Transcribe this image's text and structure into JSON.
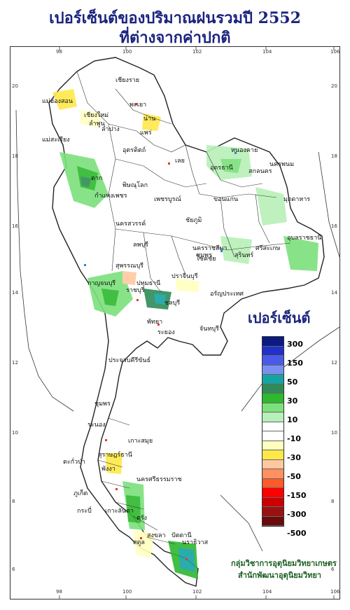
{
  "title": {
    "line1": "เปอร์เซ็นต์ของปริมาณฝนรวมปี  2552",
    "line2": "ที่ต่างจากค่าปกติ"
  },
  "axes": {
    "top_ticks": [
      "98",
      "100",
      "102",
      "104",
      "106"
    ],
    "bottom_ticks": [
      "98",
      "100",
      "102",
      "104",
      "106"
    ],
    "left_ticks": [
      "20",
      "18",
      "16",
      "14",
      "12",
      "10",
      "8",
      "6"
    ],
    "right_ticks": [
      "20",
      "18",
      "16",
      "14",
      "12",
      "10",
      "8",
      "6"
    ]
  },
  "places": [
    {
      "name": "เชียงราย"
    },
    {
      "name": "แม่ฮ่องสอน"
    },
    {
      "name": "เชียงใหม่"
    },
    {
      "name": "ลำพูน"
    },
    {
      "name": "พะเยา"
    },
    {
      "name": "น่าน"
    },
    {
      "name": "ลำปาง"
    },
    {
      "name": "แพร่"
    },
    {
      "name": "แม่สะเรียง"
    },
    {
      "name": "อุตรดิตถ์"
    },
    {
      "name": "ตาก"
    },
    {
      "name": "พิษณุโลก"
    },
    {
      "name": "กำแพงเพชร"
    },
    {
      "name": "เพชรบูรณ์"
    },
    {
      "name": "เลย"
    },
    {
      "name": "อุดรธานี"
    },
    {
      "name": "หนองคาย"
    },
    {
      "name": "สกลนคร"
    },
    {
      "name": "นครพนม"
    },
    {
      "name": "มุกดาหาร"
    },
    {
      "name": "ขอนแก่น"
    },
    {
      "name": "ชัยภูมิ"
    },
    {
      "name": "นครสวรรค์"
    },
    {
      "name": "ลพบุรี"
    },
    {
      "name": "นครราชสีมา"
    },
    {
      "name": "โชคชัย"
    },
    {
      "name": "ชุมพร"
    },
    {
      "name": "สุรินทร์"
    },
    {
      "name": "ศรีสะเกษ"
    },
    {
      "name": "อุบลราชธานี"
    },
    {
      "name": "สุพรรณบุรี"
    },
    {
      "name": "กาญจนบุรี"
    },
    {
      "name": "ปทุมธานี"
    },
    {
      "name": "ราชบุรี"
    },
    {
      "name": "ปราจีนบุรี"
    },
    {
      "name": "อรัญประเทศ"
    },
    {
      "name": "ชลบุรี"
    },
    {
      "name": "พัทยา"
    },
    {
      "name": "ระยอง"
    },
    {
      "name": "จันทบุรี"
    },
    {
      "name": "ประจวบคีรีขันธ์"
    },
    {
      "name": "ชุมพร"
    },
    {
      "name": "ระนอง"
    },
    {
      "name": "เกาะสมุย"
    },
    {
      "name": "สุราษฎร์ธานี"
    },
    {
      "name": "ตะกั่วป่า"
    },
    {
      "name": "พังงา"
    },
    {
      "name": "นครศรีธรรมราช"
    },
    {
      "name": "ภูเก็ต"
    },
    {
      "name": "กระบี่"
    },
    {
      "name": "เกาะลันตา"
    },
    {
      "name": "ตรัง"
    },
    {
      "name": "สงขลา"
    },
    {
      "name": "ปัตตานี"
    },
    {
      "name": "สตูล"
    },
    {
      "name": "นราธิวาส"
    }
  ],
  "legend": {
    "title": "เปอร์เซ็นต์",
    "bins": [
      {
        "color": "#0a1a80"
      },
      {
        "color": "#2030c8"
      },
      {
        "color": "#4a5ae8"
      },
      {
        "color": "#7a90f0"
      },
      {
        "color": "#16a3a3"
      },
      {
        "color": "#2e8b57"
      },
      {
        "color": "#2eb82e"
      },
      {
        "color": "#7ce07c"
      },
      {
        "color": "#b8f0b8"
      },
      {
        "color": "#ffffff"
      },
      {
        "color": "#ffffff"
      },
      {
        "color": "#ffffc0"
      },
      {
        "color": "#ffe84a"
      },
      {
        "color": "#ffc8a0"
      },
      {
        "color": "#ff9060"
      },
      {
        "color": "#ff5a2a"
      },
      {
        "color": "#ff0000"
      },
      {
        "color": "#cc0000"
      },
      {
        "color": "#991111"
      },
      {
        "color": "#6b0a0a"
      }
    ],
    "labels": [
      "300",
      "150",
      "50",
      "30",
      "10",
      "-10",
      "-30",
      "-50",
      "-150",
      "-300",
      "-500"
    ]
  },
  "credit": {
    "line1": "กลุ่มวิชาการอุตุนิยมวิทยาเกษตร",
    "line2": "สำนักพัฒนาอุตุนิยมวิทยา"
  }
}
